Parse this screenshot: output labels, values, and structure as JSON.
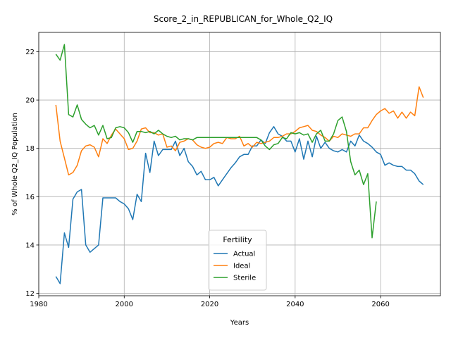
{
  "chart_data": {
    "type": "line",
    "title": "Score_2_in_REPUBLICAN_for_Whole_Q2_IQ",
    "xlabel": "Years",
    "ylabel": "% of Whole Q2_IQ Population",
    "xlim": [
      1980,
      2074
    ],
    "ylim": [
      11.9,
      22.8
    ],
    "xticks": [
      1980,
      2000,
      2020,
      2040,
      2060
    ],
    "yticks": [
      12,
      14,
      16,
      18,
      20,
      22
    ],
    "grid": true,
    "legend": {
      "title": "Fertility",
      "position": "lower-center"
    },
    "series": [
      {
        "name": "Actual",
        "color": "#1f77b4",
        "x": [
          1984,
          1985,
          1986,
          1987,
          1988,
          1989,
          1990,
          1991,
          1992,
          1993,
          1994,
          1995,
          1996,
          1997,
          1998,
          1999,
          2000,
          2001,
          2002,
          2003,
          2004,
          2005,
          2006,
          2007,
          2008,
          2009,
          2010,
          2011,
          2012,
          2013,
          2014,
          2015,
          2016,
          2017,
          2018,
          2019,
          2020,
          2021,
          2022,
          2023,
          2024,
          2025,
          2026,
          2027,
          2028,
          2029,
          2030,
          2031,
          2032,
          2033,
          2034,
          2035,
          2036,
          2037,
          2038,
          2039,
          2040,
          2041,
          2042,
          2043,
          2044,
          2045,
          2046,
          2047,
          2048,
          2049,
          2050,
          2051,
          2052,
          2053,
          2054,
          2055,
          2056,
          2057,
          2058,
          2059,
          2060,
          2061,
          2062,
          2063,
          2064,
          2065,
          2066,
          2067,
          2068,
          2069,
          2070
        ],
        "values": [
          12.7,
          12.4,
          14.5,
          13.9,
          15.9,
          16.2,
          16.3,
          14.0,
          13.7,
          13.85,
          14.0,
          15.95,
          15.95,
          15.95,
          15.95,
          15.8,
          15.7,
          15.5,
          15.05,
          16.1,
          15.8,
          17.8,
          17.0,
          18.3,
          17.7,
          17.95,
          17.95,
          17.95,
          18.3,
          17.7,
          18.0,
          17.45,
          17.25,
          16.9,
          17.05,
          16.7,
          16.7,
          16.8,
          16.45,
          16.7,
          16.95,
          17.2,
          17.4,
          17.65,
          17.75,
          17.75,
          18.1,
          18.1,
          18.35,
          18.2,
          18.65,
          18.9,
          18.6,
          18.5,
          18.3,
          18.3,
          17.85,
          18.4,
          17.55,
          18.3,
          17.65,
          18.5,
          18.0,
          18.25,
          18.0,
          17.9,
          17.85,
          17.95,
          17.85,
          18.3,
          18.1,
          18.55,
          18.3,
          18.2,
          18.05,
          17.85,
          17.75,
          17.3,
          17.4,
          17.3,
          17.25,
          17.25,
          17.1,
          17.1,
          16.95,
          16.65,
          16.5
        ]
      },
      {
        "name": "Ideal",
        "color": "#ff7f0e",
        "x": [
          1984,
          1985,
          1986,
          1987,
          1988,
          1989,
          1990,
          1991,
          1992,
          1993,
          1994,
          1995,
          1996,
          1997,
          1998,
          1999,
          2000,
          2001,
          2002,
          2003,
          2004,
          2005,
          2006,
          2007,
          2008,
          2009,
          2010,
          2011,
          2012,
          2013,
          2014,
          2015,
          2016,
          2017,
          2018,
          2019,
          2020,
          2021,
          2022,
          2023,
          2024,
          2025,
          2026,
          2027,
          2028,
          2029,
          2030,
          2031,
          2032,
          2033,
          2034,
          2035,
          2036,
          2037,
          2038,
          2039,
          2040,
          2041,
          2042,
          2043,
          2044,
          2045,
          2046,
          2047,
          2048,
          2049,
          2050,
          2051,
          2052,
          2053,
          2054,
          2055,
          2056,
          2057,
          2058,
          2059,
          2060,
          2061,
          2062,
          2063,
          2064,
          2065,
          2066,
          2067,
          2068,
          2069,
          2070
        ],
        "values": [
          19.8,
          18.3,
          17.6,
          16.9,
          17.0,
          17.3,
          17.9,
          18.1,
          18.15,
          18.05,
          17.65,
          18.4,
          18.2,
          18.55,
          18.8,
          18.6,
          18.4,
          17.95,
          18.0,
          18.3,
          18.8,
          18.85,
          18.65,
          18.65,
          18.55,
          18.6,
          18.05,
          18.1,
          17.9,
          18.25,
          18.3,
          18.4,
          18.35,
          18.15,
          18.05,
          18.0,
          18.05,
          18.2,
          18.25,
          18.2,
          18.45,
          18.4,
          18.4,
          18.5,
          18.1,
          18.2,
          18.05,
          18.25,
          18.2,
          18.25,
          18.3,
          18.45,
          18.45,
          18.5,
          18.6,
          18.6,
          18.7,
          18.85,
          18.9,
          18.95,
          18.75,
          18.7,
          18.55,
          18.45,
          18.3,
          18.5,
          18.45,
          18.6,
          18.55,
          18.5,
          18.6,
          18.6,
          18.85,
          18.85,
          19.15,
          19.4,
          19.55,
          19.65,
          19.45,
          19.55,
          19.25,
          19.5,
          19.25,
          19.5,
          19.35,
          20.55,
          20.1
        ]
      },
      {
        "name": "Sterile",
        "color": "#2ca02c",
        "x": [
          1984,
          1985,
          1986,
          1987,
          1988,
          1989,
          1990,
          1991,
          1992,
          1993,
          1994,
          1995,
          1996,
          1997,
          1998,
          1999,
          2000,
          2001,
          2002,
          2003,
          2004,
          2005,
          2006,
          2007,
          2008,
          2009,
          2010,
          2011,
          2012,
          2013,
          2014,
          2015,
          2016,
          2017,
          2018,
          2019,
          2020,
          2021,
          2022,
          2023,
          2024,
          2025,
          2026,
          2027,
          2028,
          2029,
          2030,
          2031,
          2032,
          2033,
          2034,
          2035,
          2036,
          2037,
          2038,
          2039,
          2040,
          2041,
          2042,
          2043,
          2044,
          2045,
          2046,
          2047,
          2048,
          2049,
          2050,
          2051,
          2052,
          2053,
          2054,
          2055,
          2056,
          2057,
          2058,
          2059
        ],
        "values": [
          21.9,
          21.65,
          22.3,
          19.4,
          19.3,
          19.8,
          19.2,
          19.0,
          18.85,
          18.95,
          18.55,
          18.95,
          18.4,
          18.45,
          18.85,
          18.9,
          18.85,
          18.65,
          18.25,
          18.7,
          18.7,
          18.65,
          18.7,
          18.6,
          18.75,
          18.6,
          18.5,
          18.45,
          18.5,
          18.35,
          18.4,
          18.4,
          18.35,
          18.45,
          18.45,
          18.45,
          18.45,
          18.45,
          18.45,
          18.45,
          18.45,
          18.45,
          18.45,
          18.45,
          18.45,
          18.45,
          18.45,
          18.45,
          18.35,
          18.1,
          17.95,
          18.15,
          18.2,
          18.45,
          18.4,
          18.65,
          18.6,
          18.65,
          18.55,
          18.6,
          18.25,
          18.6,
          18.75,
          18.3,
          18.3,
          18.6,
          19.15,
          19.3,
          18.7,
          17.45,
          16.9,
          17.1,
          16.5,
          16.95,
          14.3,
          15.8
        ]
      }
    ]
  }
}
